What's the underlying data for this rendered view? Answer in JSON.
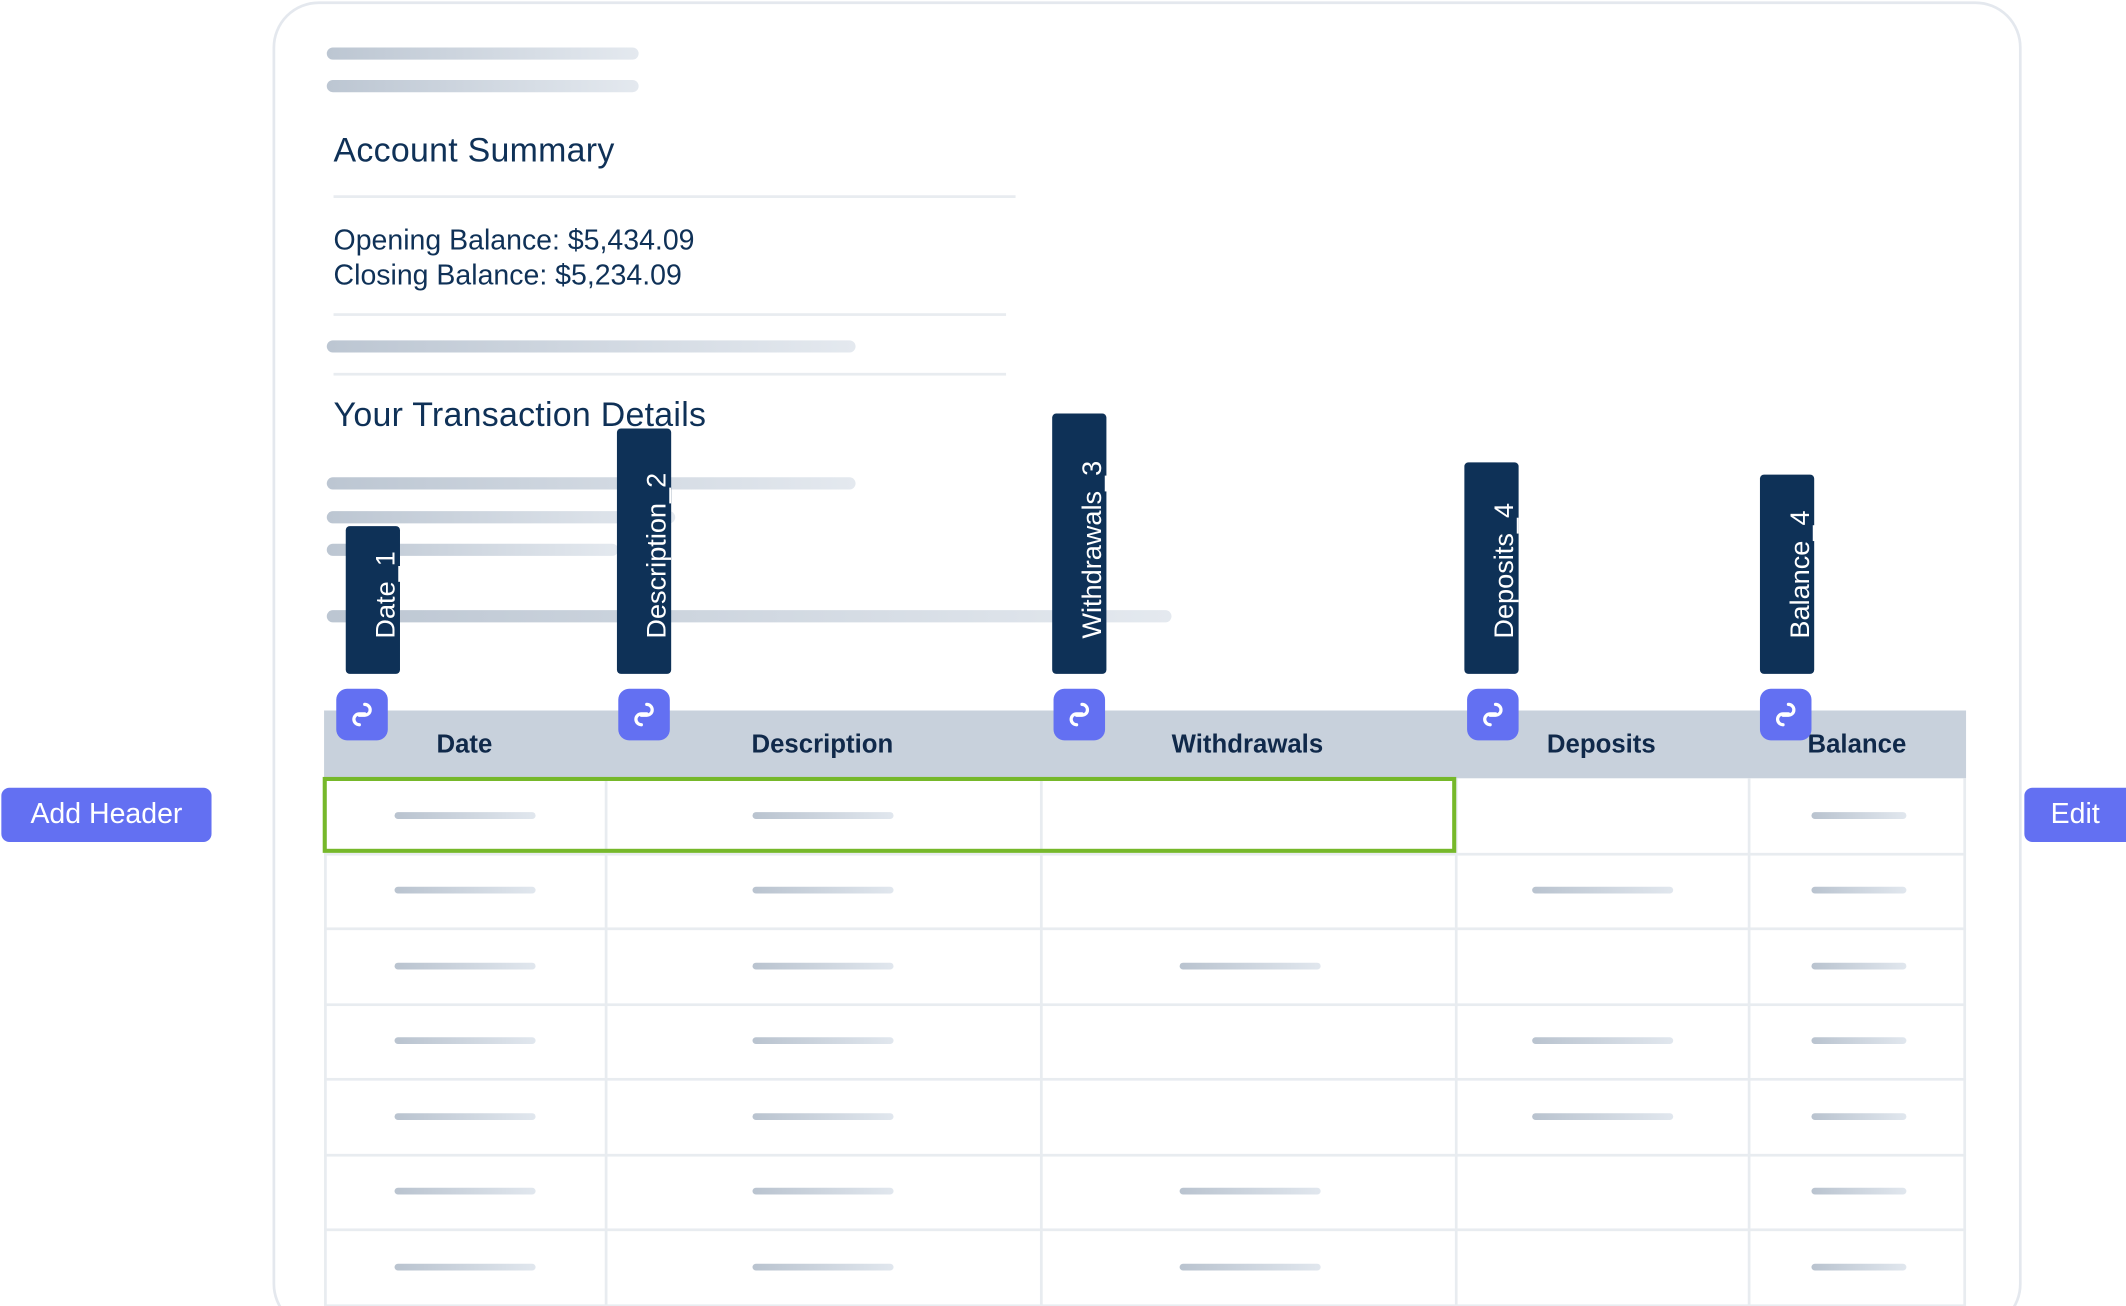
{
  "summary": {
    "title": "Account Summary",
    "opening_balance": "Opening Balance: $5,434.09",
    "closing_balance": "Closing Balance: $5,234.09"
  },
  "transactions": {
    "title": "Your Transaction Details"
  },
  "tags": [
    "Date_1",
    "Description_2",
    "Withdrawals_3",
    "Deposits_4",
    "Balance_4"
  ],
  "table": {
    "columns": [
      "Date",
      "Description",
      "Withdrawals",
      "Deposits",
      "Balance"
    ],
    "rows": [
      {
        "date": true,
        "description": true,
        "withdrawals": false,
        "deposits": false,
        "balance": true
      },
      {
        "date": true,
        "description": true,
        "withdrawals": false,
        "deposits": true,
        "balance": true
      },
      {
        "date": true,
        "description": true,
        "withdrawals": true,
        "deposits": false,
        "balance": true
      },
      {
        "date": true,
        "description": true,
        "withdrawals": false,
        "deposits": true,
        "balance": true
      },
      {
        "date": true,
        "description": true,
        "withdrawals": false,
        "deposits": true,
        "balance": true
      },
      {
        "date": true,
        "description": true,
        "withdrawals": true,
        "deposits": false,
        "balance": true
      },
      {
        "date": true,
        "description": true,
        "withdrawals": true,
        "deposits": false,
        "balance": true
      }
    ]
  },
  "buttons": {
    "add_header": "Add Header",
    "edit": "Edit"
  },
  "icons": {
    "link": "link-icon"
  },
  "colors": {
    "accent": "#6370f2",
    "tag_background": "#0e3157",
    "header_background": "#c8d1dc",
    "highlight": "#76b82a",
    "text": "#0f3157"
  }
}
